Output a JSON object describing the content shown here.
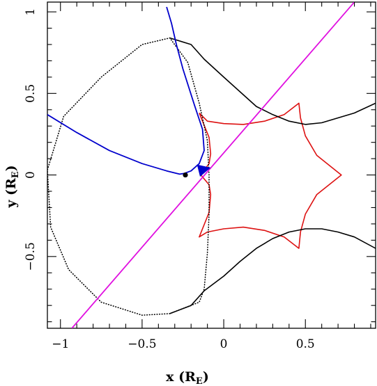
{
  "chart_data": {
    "type": "line",
    "title": "",
    "xlabel": {
      "main": "x (R",
      "sub": "E",
      "close": ")"
    },
    "ylabel": {
      "main": "y (R",
      "sub": "E",
      "close": ")"
    },
    "xlim": [
      -1.08,
      0.93
    ],
    "ylim": [
      -0.94,
      1.06
    ],
    "x_ticks": [
      {
        "value": -1,
        "label": "−1"
      },
      {
        "value": -0.5,
        "label": "−0.5"
      },
      {
        "value": 0,
        "label": "0"
      },
      {
        "value": 0.5,
        "label": "0.5"
      }
    ],
    "y_ticks": [
      {
        "value": -0.5,
        "label": "−0.5"
      },
      {
        "value": 0,
        "label": "0"
      },
      {
        "value": 0.5,
        "label": "0.5"
      },
      {
        "value": 1,
        "label": "1"
      }
    ],
    "grid": false,
    "colors": {
      "caustic": "#dd1111",
      "trajectory": "#e010e0",
      "critical": "#000000",
      "track": "#0000cc",
      "lens": "#000000"
    },
    "series": [
      {
        "id": "caustic",
        "style": "solid",
        "points": [
          [
            -0.15,
            0.38
          ],
          [
            -0.1,
            0.33
          ],
          [
            0.0,
            0.315
          ],
          [
            0.12,
            0.31
          ],
          [
            0.25,
            0.33
          ],
          [
            0.37,
            0.37
          ],
          [
            0.46,
            0.44
          ],
          [
            0.47,
            0.35
          ],
          [
            0.5,
            0.24
          ],
          [
            0.57,
            0.12
          ],
          [
            0.72,
            0.0
          ],
          [
            0.57,
            -0.12
          ],
          [
            0.5,
            -0.24
          ],
          [
            0.47,
            -0.35
          ],
          [
            0.46,
            -0.45
          ],
          [
            0.37,
            -0.38
          ],
          [
            0.25,
            -0.34
          ],
          [
            0.12,
            -0.32
          ],
          [
            0.0,
            -0.33
          ],
          [
            -0.1,
            -0.35
          ],
          [
            -0.15,
            -0.38
          ],
          [
            -0.09,
            -0.23
          ],
          [
            -0.08,
            -0.12
          ],
          [
            -0.09,
            -0.06
          ],
          [
            -0.14,
            0.0
          ],
          [
            -0.09,
            0.07
          ],
          [
            -0.08,
            0.13
          ],
          [
            -0.09,
            0.23
          ],
          [
            -0.15,
            0.38
          ]
        ]
      },
      {
        "id": "critical-curve-circle",
        "style": "dotted",
        "points": [
          [
            -0.09,
            0.0
          ],
          [
            -0.1,
            0.21
          ],
          [
            -0.15,
            0.44
          ],
          [
            -0.22,
            0.69
          ],
          [
            -0.33,
            0.84
          ],
          [
            -0.5,
            0.8
          ],
          [
            -0.75,
            0.6
          ],
          [
            -0.98,
            0.36
          ],
          [
            -1.08,
            0.03
          ],
          [
            -1.06,
            -0.32
          ],
          [
            -0.95,
            -0.58
          ],
          [
            -0.75,
            -0.78
          ],
          [
            -0.5,
            -0.86
          ],
          [
            -0.33,
            -0.85
          ],
          [
            -0.15,
            -0.78
          ],
          [
            -0.12,
            -0.7
          ],
          [
            -0.1,
            -0.48
          ],
          [
            -0.09,
            -0.24
          ],
          [
            -0.09,
            0.0
          ]
        ]
      },
      {
        "id": "critical-curve-upper",
        "style": "solid",
        "points": [
          [
            -0.33,
            0.84
          ],
          [
            -0.2,
            0.8
          ],
          [
            -0.12,
            0.71
          ],
          [
            0.0,
            0.6
          ],
          [
            0.1,
            0.51
          ],
          [
            0.2,
            0.42
          ],
          [
            0.3,
            0.37
          ],
          [
            0.4,
            0.33
          ],
          [
            0.5,
            0.31
          ],
          [
            0.6,
            0.32
          ],
          [
            0.7,
            0.35
          ],
          [
            0.8,
            0.38
          ],
          [
            0.93,
            0.44
          ]
        ]
      },
      {
        "id": "critical-curve-lower",
        "style": "solid",
        "points": [
          [
            -0.33,
            -0.85
          ],
          [
            -0.2,
            -0.8
          ],
          [
            -0.12,
            -0.71
          ],
          [
            0.0,
            -0.62
          ],
          [
            0.1,
            -0.53
          ],
          [
            0.2,
            -0.45
          ],
          [
            0.3,
            -0.39
          ],
          [
            0.4,
            -0.35
          ],
          [
            0.5,
            -0.33
          ],
          [
            0.6,
            -0.33
          ],
          [
            0.7,
            -0.35
          ],
          [
            0.8,
            -0.38
          ],
          [
            0.93,
            -0.45
          ]
        ]
      },
      {
        "id": "source-trajectory",
        "style": "solid",
        "points": [
          [
            -0.93,
            -0.94
          ],
          [
            0.8,
            1.06
          ]
        ]
      },
      {
        "id": "image-track",
        "style": "solid",
        "points": [
          [
            -0.35,
            1.03
          ],
          [
            -0.32,
            0.93
          ],
          [
            -0.29,
            0.8
          ],
          [
            -0.25,
            0.65
          ],
          [
            -0.18,
            0.43
          ],
          [
            -0.13,
            0.28
          ],
          [
            -0.12,
            0.15
          ],
          [
            -0.15,
            0.07
          ],
          [
            -0.2,
            0.025
          ],
          [
            -0.24,
            0.01
          ],
          [
            -0.27,
            0.005
          ],
          [
            -0.35,
            0.025
          ],
          [
            -0.5,
            0.07
          ],
          [
            -0.7,
            0.15
          ],
          [
            -0.9,
            0.26
          ],
          [
            -1.08,
            0.37
          ]
        ]
      }
    ],
    "lens": {
      "x": -0.235,
      "y": 0.0
    },
    "arrow": {
      "tip": [
        -0.08,
        0.045
      ],
      "from": [
        -0.14,
        0.03
      ]
    }
  }
}
